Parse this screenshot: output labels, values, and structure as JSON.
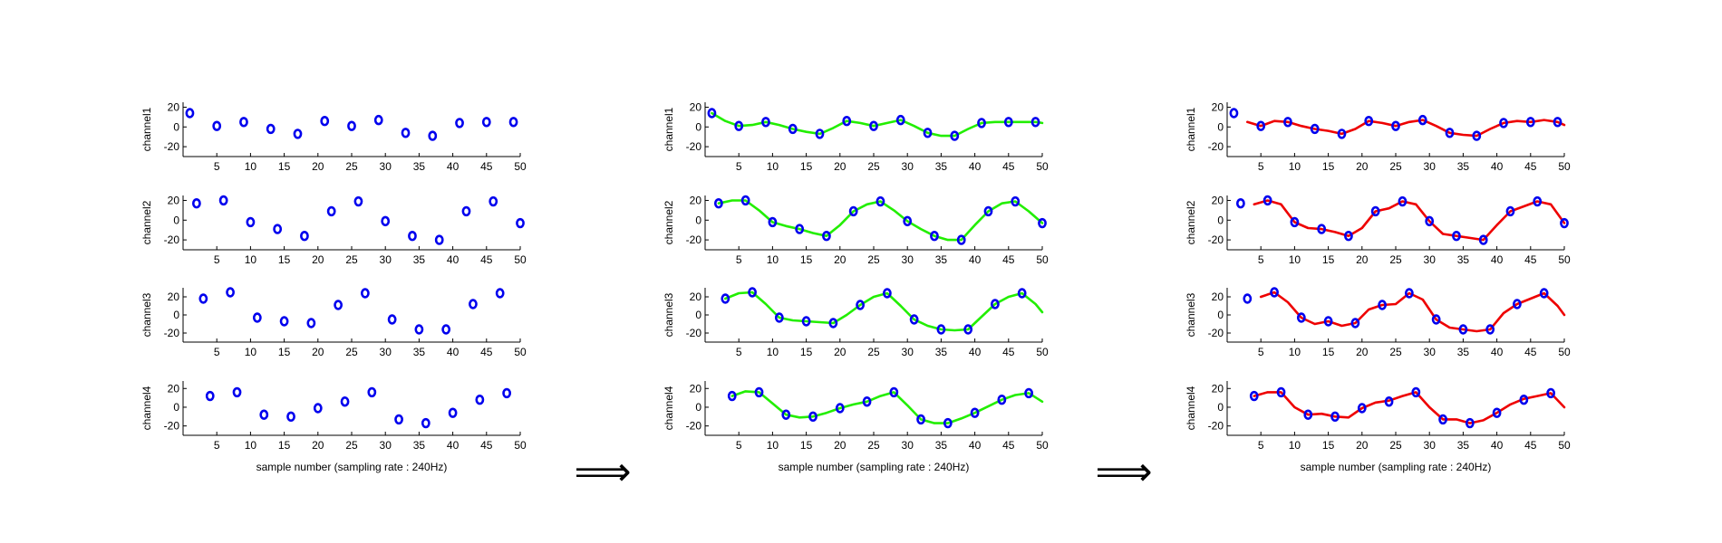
{
  "xlabel": "sample number (sampling rate : 240Hz)",
  "arrow_glyph": "⟹",
  "colors": {
    "points": "#0000ee",
    "green_curve": "#22ee00",
    "red_curve": "#ee0000",
    "axis": "#000000"
  },
  "chart_data": [
    {
      "type": "scatter",
      "variant": "points only",
      "xlabel": "sample number (sampling rate : 240Hz)",
      "xticks": [
        5,
        10,
        15,
        20,
        25,
        30,
        35,
        40,
        45,
        50
      ],
      "xlim": [
        0,
        50
      ],
      "panels": [
        {
          "ylabel": "channel1",
          "ylim": [
            -30,
            25
          ],
          "yticks": [
            20,
            0,
            -20
          ],
          "points": {
            "x": [
              1,
              5,
              9,
              13,
              17,
              21,
              25,
              29,
              33,
              37,
              41,
              45,
              49
            ],
            "y": [
              14,
              1,
              5,
              -2,
              -7,
              6,
              1,
              7,
              -6,
              -9,
              4,
              5,
              5
            ]
          }
        },
        {
          "ylabel": "channel2",
          "ylim": [
            -30,
            25
          ],
          "yticks": [
            20,
            0,
            -20
          ],
          "points": {
            "x": [
              2,
              6,
              10,
              14,
              18,
              22,
              26,
              30,
              34,
              38,
              42,
              46,
              50
            ],
            "y": [
              17,
              20,
              -2,
              -9,
              -16,
              9,
              19,
              -1,
              -16,
              -20,
              9,
              19,
              -3
            ]
          }
        },
        {
          "ylabel": "channel3",
          "ylim": [
            -30,
            30
          ],
          "yticks": [
            20,
            0,
            -20
          ],
          "points": {
            "x": [
              3,
              7,
              11,
              15,
              19,
              23,
              27,
              31,
              35,
              39,
              43,
              47
            ],
            "y": [
              18,
              25,
              -3,
              -7,
              -9,
              11,
              24,
              -5,
              -16,
              -16,
              12,
              24
            ]
          }
        },
        {
          "ylabel": "channel4",
          "ylim": [
            -30,
            28
          ],
          "yticks": [
            20,
            0,
            -20
          ],
          "points": {
            "x": [
              4,
              8,
              12,
              16,
              20,
              24,
              28,
              32,
              36,
              40,
              44,
              48
            ],
            "y": [
              12,
              16,
              -8,
              -10,
              -1,
              6,
              16,
              -13,
              -17,
              -6,
              8,
              15
            ]
          }
        }
      ]
    },
    {
      "type": "line",
      "variant": "points with smooth green fit",
      "xlabel": "sample number (sampling rate : 240Hz)",
      "xticks": [
        5,
        10,
        15,
        20,
        25,
        30,
        35,
        40,
        45,
        50
      ],
      "xlim": [
        0,
        50
      ],
      "panels": [
        {
          "ylabel": "channel1",
          "ylim": [
            -30,
            25
          ],
          "yticks": [
            20,
            0,
            -20
          ],
          "points": {
            "x": [
              1,
              5,
              9,
              13,
              17,
              21,
              25,
              29,
              33,
              37,
              41,
              45,
              49
            ],
            "y": [
              14,
              1,
              5,
              -2,
              -7,
              6,
              1,
              7,
              -6,
              -9,
              4,
              5,
              5
            ]
          },
          "curve": {
            "x": [
              1,
              3,
              5,
              7,
              9,
              11,
              13,
              15,
              17,
              19,
              21,
              23,
              25,
              27,
              29,
              31,
              33,
              35,
              37,
              39,
              41,
              43,
              45,
              47,
              49,
              50
            ],
            "y": [
              14,
              6,
              1,
              2,
              5,
              2,
              -2,
              -5,
              -7,
              -1,
              6,
              4,
              1,
              4,
              7,
              1,
              -6,
              -9,
              -9,
              -2,
              4,
              5,
              5,
              5,
              5,
              4
            ]
          }
        },
        {
          "ylabel": "channel2",
          "ylim": [
            -30,
            25
          ],
          "yticks": [
            20,
            0,
            -20
          ],
          "points": {
            "x": [
              2,
              6,
              10,
              14,
              18,
              22,
              26,
              30,
              34,
              38,
              42,
              46,
              50
            ],
            "y": [
              17,
              20,
              -2,
              -9,
              -16,
              9,
              19,
              -1,
              -16,
              -20,
              9,
              19,
              -3
            ]
          },
          "curve": {
            "x": [
              2,
              4,
              6,
              8,
              10,
              12,
              14,
              16,
              18,
              20,
              22,
              24,
              26,
              28,
              30,
              32,
              34,
              36,
              38,
              40,
              42,
              44,
              46,
              48,
              50
            ],
            "y": [
              17,
              20,
              20,
              10,
              -2,
              -6,
              -9,
              -13,
              -16,
              -5,
              9,
              16,
              19,
              10,
              -1,
              -9,
              -16,
              -20,
              -20,
              -5,
              9,
              17,
              19,
              9,
              -3
            ]
          }
        },
        {
          "ylabel": "channel3",
          "ylim": [
            -30,
            30
          ],
          "yticks": [
            20,
            0,
            -20
          ],
          "points": {
            "x": [
              3,
              7,
              11,
              15,
              19,
              23,
              27,
              31,
              35,
              39,
              43,
              47
            ],
            "y": [
              18,
              25,
              -3,
              -7,
              -9,
              11,
              24,
              -5,
              -16,
              -16,
              12,
              24
            ]
          },
          "curve": {
            "x": [
              3,
              5,
              7,
              9,
              11,
              13,
              15,
              17,
              19,
              21,
              23,
              25,
              27,
              29,
              31,
              33,
              35,
              37,
              39,
              41,
              43,
              45,
              47,
              49,
              50
            ],
            "y": [
              18,
              24,
              25,
              12,
              -3,
              -6,
              -7,
              -8,
              -9,
              0,
              11,
              20,
              24,
              10,
              -5,
              -12,
              -16,
              -17,
              -16,
              -2,
              12,
              20,
              24,
              12,
              3
            ]
          }
        },
        {
          "ylabel": "channel4",
          "ylim": [
            -30,
            28
          ],
          "yticks": [
            20,
            0,
            -20
          ],
          "points": {
            "x": [
              4,
              8,
              12,
              16,
              20,
              24,
              28,
              32,
              36,
              40,
              44,
              48
            ],
            "y": [
              12,
              16,
              -8,
              -10,
              -1,
              6,
              16,
              -13,
              -17,
              -6,
              8,
              15
            ]
          },
          "curve": {
            "x": [
              4,
              6,
              8,
              10,
              12,
              14,
              16,
              18,
              20,
              22,
              24,
              26,
              28,
              30,
              32,
              34,
              36,
              38,
              40,
              42,
              44,
              46,
              48,
              50
            ],
            "y": [
              12,
              17,
              16,
              4,
              -8,
              -11,
              -10,
              -6,
              -1,
              3,
              6,
              12,
              16,
              2,
              -13,
              -17,
              -17,
              -12,
              -6,
              1,
              8,
              13,
              15,
              6
            ]
          }
        }
      ]
    },
    {
      "type": "line",
      "variant": "points with red fit",
      "xlabel": "sample number (sampling rate : 240Hz)",
      "xticks": [
        5,
        10,
        15,
        20,
        25,
        30,
        35,
        40,
        45,
        50
      ],
      "xlim": [
        0,
        50
      ],
      "panels": [
        {
          "ylabel": "channel1",
          "ylim": [
            -30,
            25
          ],
          "yticks": [
            20,
            0,
            -20
          ],
          "points": {
            "x": [
              1,
              5,
              9,
              13,
              17,
              21,
              25,
              29,
              33,
              37,
              41,
              45,
              49
            ],
            "y": [
              14,
              1,
              5,
              -2,
              -7,
              6,
              1,
              7,
              -6,
              -9,
              4,
              5,
              5
            ]
          },
          "curve": {
            "x": [
              3,
              5,
              7,
              9,
              11,
              13,
              15,
              17,
              19,
              21,
              23,
              25,
              27,
              29,
              31,
              33,
              35,
              37,
              39,
              41,
              43,
              45,
              47,
              49,
              50
            ],
            "y": [
              5,
              1,
              6,
              5,
              1,
              -2,
              -4,
              -7,
              -2,
              6,
              4,
              1,
              5,
              7,
              1,
              -6,
              -8,
              -9,
              -2,
              4,
              6,
              5,
              7,
              5,
              2
            ]
          }
        },
        {
          "ylabel": "channel2",
          "ylim": [
            -30,
            25
          ],
          "yticks": [
            20,
            0,
            -20
          ],
          "points": {
            "x": [
              2,
              6,
              10,
              14,
              18,
              22,
              26,
              30,
              34,
              38,
              42,
              46,
              50
            ],
            "y": [
              17,
              20,
              -2,
              -9,
              -16,
              9,
              19,
              -1,
              -16,
              -20,
              9,
              19,
              -3
            ]
          },
          "curve": {
            "x": [
              4,
              6,
              8,
              10,
              12,
              14,
              16,
              18,
              20,
              22,
              24,
              26,
              28,
              30,
              32,
              34,
              36,
              38,
              40,
              42,
              44,
              46,
              48,
              50
            ],
            "y": [
              16,
              20,
              16,
              -2,
              -8,
              -9,
              -12,
              -16,
              -8,
              9,
              12,
              19,
              16,
              -1,
              -14,
              -16,
              -18,
              -20,
              -5,
              9,
              14,
              19,
              16,
              -3
            ]
          }
        },
        {
          "ylabel": "channel3",
          "ylim": [
            -30,
            30
          ],
          "yticks": [
            20,
            0,
            -20
          ],
          "points": {
            "x": [
              3,
              7,
              11,
              15,
              19,
              23,
              27,
              31,
              35,
              39,
              43,
              47
            ],
            "y": [
              18,
              25,
              -3,
              -7,
              -9,
              11,
              24,
              -5,
              -16,
              -16,
              12,
              24
            ]
          },
          "curve": {
            "x": [
              5,
              7,
              9,
              11,
              13,
              15,
              17,
              19,
              21,
              23,
              25,
              27,
              29,
              31,
              33,
              35,
              37,
              39,
              41,
              43,
              45,
              47,
              49,
              50
            ],
            "y": [
              20,
              25,
              14,
              -3,
              -10,
              -7,
              -12,
              -9,
              6,
              11,
              12,
              24,
              17,
              -5,
              -14,
              -16,
              -18,
              -16,
              2,
              12,
              18,
              24,
              10,
              0
            ]
          }
        },
        {
          "ylabel": "channel4",
          "ylim": [
            -30,
            28
          ],
          "yticks": [
            20,
            0,
            -20
          ],
          "points": {
            "x": [
              4,
              8,
              12,
              16,
              20,
              24,
              28,
              32,
              36,
              40,
              44,
              48
            ],
            "y": [
              12,
              16,
              -8,
              -10,
              -1,
              6,
              16,
              -13,
              -17,
              -6,
              8,
              15
            ]
          },
          "curve": {
            "x": [
              4,
              6,
              8,
              10,
              12,
              14,
              16,
              18,
              20,
              22,
              24,
              26,
              28,
              30,
              32,
              34,
              36,
              38,
              40,
              42,
              44,
              46,
              48,
              50
            ],
            "y": [
              12,
              16,
              16,
              0,
              -8,
              -7,
              -10,
              -11,
              -1,
              5,
              7,
              12,
              16,
              0,
              -13,
              -13,
              -17,
              -14,
              -6,
              3,
              9,
              12,
              15,
              0
            ]
          }
        }
      ]
    }
  ]
}
